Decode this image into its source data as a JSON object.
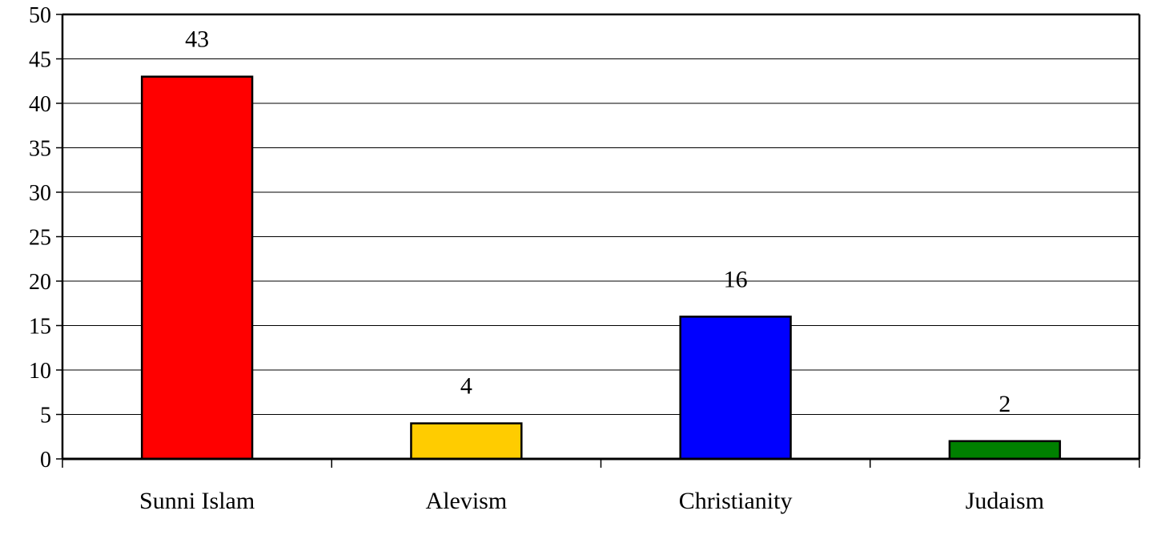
{
  "chart_data": {
    "type": "bar",
    "title": "",
    "xlabel": "",
    "ylabel": "",
    "ylim": [
      0,
      50
    ],
    "yticks": [
      0,
      5,
      10,
      15,
      20,
      25,
      30,
      35,
      40,
      45,
      50
    ],
    "grid": true,
    "legend": "none",
    "categories": [
      "Sunni Islam",
      "Alevism",
      "Christianity",
      "Judaism"
    ],
    "values": [
      43,
      4,
      16,
      2
    ],
    "colors": [
      "#ff0000",
      "#ffcc00",
      "#0000ff",
      "#008000"
    ],
    "data_labels": [
      "43",
      "4",
      "16",
      "2"
    ]
  }
}
